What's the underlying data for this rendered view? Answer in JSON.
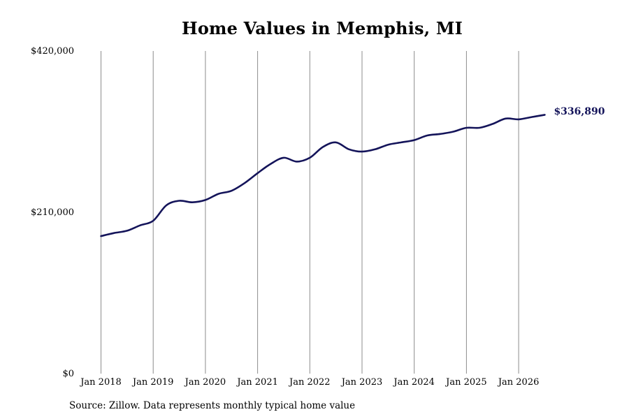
{
  "chart_data": {
    "type": "line",
    "title": "Home Values in Memphis, MI",
    "xlabel": "",
    "ylabel": "",
    "ylim": [
      0,
      420000
    ],
    "y_ticks": [
      {
        "value": 0,
        "label": "$0"
      },
      {
        "value": 210000,
        "label": "$210,000"
      },
      {
        "value": 420000,
        "label": "$420,000"
      }
    ],
    "x_ticks": [
      {
        "value": 2018,
        "label": "Jan 2018"
      },
      {
        "value": 2019,
        "label": "Jan 2019"
      },
      {
        "value": 2020,
        "label": "Jan 2020"
      },
      {
        "value": 2021,
        "label": "Jan 2021"
      },
      {
        "value": 2022,
        "label": "Jan 2022"
      },
      {
        "value": 2023,
        "label": "Jan 2023"
      },
      {
        "value": 2024,
        "label": "Jan 2024"
      },
      {
        "value": 2025,
        "label": "Jan 2025"
      },
      {
        "value": 2026,
        "label": "Jan 2026"
      }
    ],
    "xlim": [
      2018,
      2026.5
    ],
    "grid": "vertical",
    "legend": "none",
    "line_color": "#14145a",
    "grid_color": "#8c8c8c",
    "series": [
      {
        "x": [
          2018.0,
          2018.25,
          2018.5,
          2018.75,
          2019.0,
          2019.25,
          2019.5,
          2019.75,
          2020.0,
          2020.25,
          2020.5,
          2020.75,
          2021.0,
          2021.25,
          2021.5,
          2021.75,
          2022.0,
          2022.25,
          2022.5,
          2022.75,
          2023.0,
          2023.25,
          2023.5,
          2023.75,
          2024.0,
          2024.25,
          2024.5,
          2024.75,
          2025.0,
          2025.25,
          2025.5,
          2025.75,
          2026.0,
          2026.25,
          2026.5
        ],
        "values": [
          179000,
          183000,
          186000,
          193000,
          199000,
          219000,
          225000,
          223000,
          226000,
          234000,
          238000,
          248000,
          261000,
          273000,
          281000,
          276000,
          281000,
          295000,
          301000,
          292000,
          289000,
          292000,
          298000,
          301000,
          304000,
          310000,
          312000,
          315000,
          320000,
          320000,
          325000,
          332000,
          331000,
          334000,
          336890
        ]
      }
    ],
    "end_label": "$336,890"
  },
  "source_note": "Source: Zillow. Data represents monthly typical home value"
}
